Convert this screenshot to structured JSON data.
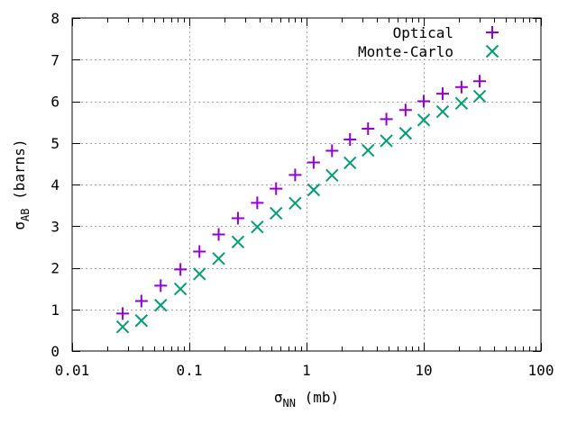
{
  "chart_data": {
    "type": "scatter",
    "title": "",
    "xlabel": {
      "base": "σ",
      "sub": "NN",
      "rest": " (mb)"
    },
    "ylabel": {
      "base": "σ",
      "sub": "AB",
      "rest": " (barns)"
    },
    "xscale": "log",
    "xlim": [
      0.01,
      100
    ],
    "ylim": [
      0,
      8
    ],
    "grid": true,
    "legend_position": "top-right",
    "x_ticks": [
      {
        "value": 0.01,
        "label": "0.01"
      },
      {
        "value": 0.1,
        "label": "0.1"
      },
      {
        "value": 1,
        "label": "1"
      },
      {
        "value": 10,
        "label": "10"
      },
      {
        "value": 100,
        "label": "100"
      }
    ],
    "y_ticks": [
      {
        "value": 0,
        "label": "0"
      },
      {
        "value": 1,
        "label": "1"
      },
      {
        "value": 2,
        "label": "2"
      },
      {
        "value": 3,
        "label": "3"
      },
      {
        "value": 4,
        "label": "4"
      },
      {
        "value": 5,
        "label": "5"
      },
      {
        "value": 6,
        "label": "6"
      },
      {
        "value": 7,
        "label": "7"
      },
      {
        "value": 8,
        "label": "8"
      }
    ],
    "series": [
      {
        "name": "Optical",
        "marker": "plus",
        "color": "#9400d3",
        "x": [
          0.027,
          0.039,
          0.057,
          0.084,
          0.122,
          0.178,
          0.26,
          0.38,
          0.55,
          0.8,
          1.15,
          1.65,
          2.35,
          3.35,
          4.8,
          7.0,
          10.0,
          14.5,
          21.0,
          30.0
        ],
        "y": [
          0.9,
          1.2,
          1.57,
          1.96,
          2.39,
          2.8,
          3.19,
          3.56,
          3.9,
          4.23,
          4.53,
          4.81,
          5.08,
          5.34,
          5.57,
          5.79,
          6.0,
          6.18,
          6.34,
          6.48
        ]
      },
      {
        "name": "Monte-Carlo",
        "marker": "cross",
        "color": "#009e73",
        "x": [
          0.027,
          0.039,
          0.057,
          0.084,
          0.122,
          0.178,
          0.26,
          0.38,
          0.55,
          0.8,
          1.15,
          1.65,
          2.35,
          3.35,
          4.8,
          7.0,
          10.0,
          14.5,
          21.0,
          30.0
        ],
        "y": [
          0.58,
          0.73,
          1.1,
          1.49,
          1.85,
          2.22,
          2.62,
          2.98,
          3.31,
          3.55,
          3.87,
          4.22,
          4.52,
          4.82,
          5.05,
          5.23,
          5.55,
          5.75,
          5.95,
          6.12
        ]
      }
    ]
  }
}
